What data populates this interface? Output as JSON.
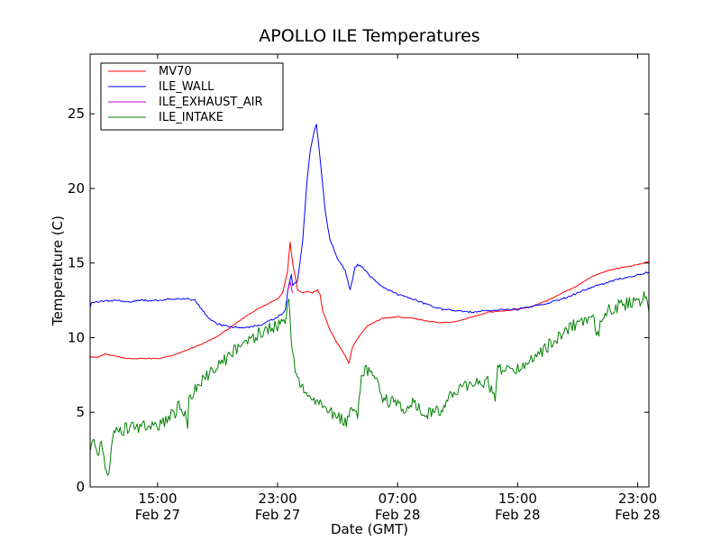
{
  "chart_data": {
    "type": "line",
    "title": "APOLLO ILE Temperatures",
    "xlabel": "Date (GMT)",
    "ylabel": "Temperature (C)",
    "xlim": [
      "2013-02-27T10:30",
      "2013-02-28T23:45"
    ],
    "ylim": [
      0,
      29
    ],
    "grid": false,
    "legend_position": "top-left",
    "x_ticks": [
      {
        "x": "2013-02-27T15:00",
        "line1": "15:00",
        "line2": "Feb 27"
      },
      {
        "x": "2013-02-27T23:00",
        "line1": "23:00",
        "line2": "Feb 27"
      },
      {
        "x": "2013-02-28T07:00",
        "line1": "07:00",
        "line2": "Feb 28"
      },
      {
        "x": "2013-02-28T15:00",
        "line1": "15:00",
        "line2": "Feb 28"
      },
      {
        "x": "2013-02-28T23:00",
        "line1": "23:00",
        "line2": "Feb 28"
      }
    ],
    "y_ticks": [
      0,
      5,
      10,
      15,
      20,
      25
    ],
    "series": [
      {
        "name": "MV70",
        "color": "#ff0000",
        "points": [
          [
            "2013-02-27T10:30",
            8.7
          ],
          [
            "2013-02-27T11:00",
            8.7
          ],
          [
            "2013-02-27T11:30",
            8.9
          ],
          [
            "2013-02-27T12:00",
            8.8
          ],
          [
            "2013-02-27T13:00",
            8.6
          ],
          [
            "2013-02-27T14:00",
            8.6
          ],
          [
            "2013-02-27T15:00",
            8.6
          ],
          [
            "2013-02-27T16:00",
            8.8
          ],
          [
            "2013-02-27T17:00",
            9.2
          ],
          [
            "2013-02-27T18:00",
            9.6
          ],
          [
            "2013-02-27T19:00",
            10.1
          ],
          [
            "2013-02-27T20:00",
            10.8
          ],
          [
            "2013-02-27T21:00",
            11.5
          ],
          [
            "2013-02-27T22:00",
            12.1
          ],
          [
            "2013-02-27T23:00",
            12.6
          ],
          [
            "2013-02-27T23:20",
            13.0
          ],
          [
            "2013-02-27T23:40",
            14.5
          ],
          [
            "2013-02-27T23:50",
            16.4
          ],
          [
            "2013-02-28T00:00",
            15.0
          ],
          [
            "2013-02-28T00:20",
            13.2
          ],
          [
            "2013-02-28T00:40",
            13.0
          ],
          [
            "2013-02-28T01:00",
            13.1
          ],
          [
            "2013-02-28T01:20",
            13.0
          ],
          [
            "2013-02-28T01:40",
            13.2
          ],
          [
            "2013-02-28T01:50",
            12.9
          ],
          [
            "2013-02-28T02:00",
            11.8
          ],
          [
            "2013-02-28T02:30",
            10.5
          ],
          [
            "2013-02-28T03:00",
            9.6
          ],
          [
            "2013-02-28T03:30",
            8.8
          ],
          [
            "2013-02-28T03:45",
            8.3
          ],
          [
            "2013-02-28T04:00",
            9.4
          ],
          [
            "2013-02-28T04:30",
            10.2
          ],
          [
            "2013-02-28T05:00",
            10.8
          ],
          [
            "2013-02-28T06:00",
            11.3
          ],
          [
            "2013-02-28T07:00",
            11.4
          ],
          [
            "2013-02-28T08:00",
            11.3
          ],
          [
            "2013-02-28T09:00",
            11.1
          ],
          [
            "2013-02-28T10:00",
            11.0
          ],
          [
            "2013-02-28T11:00",
            11.1
          ],
          [
            "2013-02-28T12:00",
            11.4
          ],
          [
            "2013-02-28T13:00",
            11.7
          ],
          [
            "2013-02-28T14:00",
            11.8
          ],
          [
            "2013-02-28T15:00",
            11.9
          ],
          [
            "2013-02-28T16:00",
            12.1
          ],
          [
            "2013-02-28T17:00",
            12.5
          ],
          [
            "2013-02-28T18:00",
            13.0
          ],
          [
            "2013-02-28T19:00",
            13.5
          ],
          [
            "2013-02-28T20:00",
            14.1
          ],
          [
            "2013-02-28T21:00",
            14.5
          ],
          [
            "2013-02-28T22:00",
            14.7
          ],
          [
            "2013-02-28T23:00",
            14.9
          ],
          [
            "2013-02-28T23:45",
            15.1
          ]
        ]
      },
      {
        "name": "ILE_WALL",
        "color": "#0000ff",
        "points": [
          [
            "2013-02-27T10:30",
            12.0
          ],
          [
            "2013-02-27T10:35",
            12.4
          ],
          [
            "2013-02-27T11:00",
            12.4
          ],
          [
            "2013-02-27T12:00",
            12.5
          ],
          [
            "2013-02-27T13:00",
            12.4
          ],
          [
            "2013-02-27T14:00",
            12.5
          ],
          [
            "2013-02-27T15:00",
            12.5
          ],
          [
            "2013-02-27T16:00",
            12.6
          ],
          [
            "2013-02-27T17:00",
            12.6
          ],
          [
            "2013-02-27T17:30",
            12.5
          ],
          [
            "2013-02-27T18:00",
            11.8
          ],
          [
            "2013-02-27T18:30",
            11.2
          ],
          [
            "2013-02-27T19:00",
            10.9
          ],
          [
            "2013-02-27T20:00",
            10.7
          ],
          [
            "2013-02-27T21:00",
            10.7
          ],
          [
            "2013-02-27T22:00",
            10.9
          ],
          [
            "2013-02-27T23:00",
            11.4
          ],
          [
            "2013-02-27T23:30",
            11.8
          ],
          [
            "2013-02-27T23:45",
            13.6
          ],
          [
            "2013-02-27T23:55",
            14.2
          ],
          [
            "2013-02-28T00:00",
            13.5
          ],
          [
            "2013-02-28T00:20",
            13.8
          ],
          [
            "2013-02-28T00:40",
            16.5
          ],
          [
            "2013-02-28T00:55",
            20.0
          ],
          [
            "2013-02-28T01:10",
            22.5
          ],
          [
            "2013-02-28T01:25",
            23.8
          ],
          [
            "2013-02-28T01:35",
            24.3
          ],
          [
            "2013-02-28T01:50",
            22.0
          ],
          [
            "2013-02-28T02:10",
            18.5
          ],
          [
            "2013-02-28T02:30",
            16.5
          ],
          [
            "2013-02-28T03:00",
            15.3
          ],
          [
            "2013-02-28T03:30",
            14.5
          ],
          [
            "2013-02-28T03:50",
            13.2
          ],
          [
            "2013-02-28T04:10",
            14.7
          ],
          [
            "2013-02-28T04:20",
            14.9
          ],
          [
            "2013-02-28T04:40",
            14.7
          ],
          [
            "2013-02-28T05:00",
            14.3
          ],
          [
            "2013-02-28T05:30",
            13.8
          ],
          [
            "2013-02-28T06:00",
            13.4
          ],
          [
            "2013-02-28T07:00",
            12.9
          ],
          [
            "2013-02-28T08:00",
            12.6
          ],
          [
            "2013-02-28T09:00",
            12.2
          ],
          [
            "2013-02-28T10:00",
            11.9
          ],
          [
            "2013-02-28T11:00",
            11.8
          ],
          [
            "2013-02-28T12:00",
            11.7
          ],
          [
            "2013-02-28T13:00",
            11.8
          ],
          [
            "2013-02-28T14:00",
            11.9
          ],
          [
            "2013-02-28T15:00",
            11.9
          ],
          [
            "2013-02-28T16:00",
            12.1
          ],
          [
            "2013-02-28T17:00",
            12.3
          ],
          [
            "2013-02-28T18:00",
            12.6
          ],
          [
            "2013-02-28T19:00",
            13.0
          ],
          [
            "2013-02-28T20:00",
            13.4
          ],
          [
            "2013-02-28T21:00",
            13.7
          ],
          [
            "2013-02-28T22:00",
            14.0
          ],
          [
            "2013-02-28T23:00",
            14.2
          ],
          [
            "2013-02-28T23:45",
            14.4
          ]
        ]
      },
      {
        "name": "ILE_EXHAUST_AIR",
        "color": "#bf00bf",
        "points": [
          [
            "2013-02-27T23:40",
            13.2
          ],
          [
            "2013-02-27T23:50",
            13.8
          ],
          [
            "2013-02-28T00:00",
            13.0
          ]
        ]
      },
      {
        "name": "ILE_INTAKE",
        "color": "#008000",
        "points": [
          [
            "2013-02-27T10:30",
            2.0
          ],
          [
            "2013-02-27T10:40",
            3.0
          ],
          [
            "2013-02-27T11:00",
            2.4
          ],
          [
            "2013-02-27T11:20",
            2.8
          ],
          [
            "2013-02-27T11:30",
            1.0
          ],
          [
            "2013-02-27T11:45",
            1.0
          ],
          [
            "2013-02-27T12:00",
            3.6
          ],
          [
            "2013-02-27T12:30",
            3.9
          ],
          [
            "2013-02-27T13:00",
            3.9
          ],
          [
            "2013-02-27T14:00",
            4.0
          ],
          [
            "2013-02-27T15:00",
            4.2
          ],
          [
            "2013-02-27T16:00",
            4.8
          ],
          [
            "2013-02-27T16:30",
            5.5
          ],
          [
            "2013-02-27T17:00",
            4.2
          ],
          [
            "2013-02-27T17:05",
            5.8
          ],
          [
            "2013-02-27T17:30",
            6.5
          ],
          [
            "2013-02-27T18:00",
            7.3
          ],
          [
            "2013-02-27T19:00",
            8.0
          ],
          [
            "2013-02-27T20:00",
            9.0
          ],
          [
            "2013-02-27T21:00",
            9.8
          ],
          [
            "2013-02-27T22:00",
            10.4
          ],
          [
            "2013-02-27T23:00",
            10.8
          ],
          [
            "2013-02-27T23:30",
            11.0
          ],
          [
            "2013-02-27T23:45",
            12.9
          ],
          [
            "2013-02-27T23:55",
            10.0
          ],
          [
            "2013-02-28T00:10",
            8.0
          ],
          [
            "2013-02-28T00:30",
            6.8
          ],
          [
            "2013-02-28T01:00",
            6.2
          ],
          [
            "2013-02-28T01:30",
            5.8
          ],
          [
            "2013-02-28T02:00",
            5.5
          ],
          [
            "2013-02-28T02:30",
            5.0
          ],
          [
            "2013-02-28T03:00",
            4.6
          ],
          [
            "2013-02-28T03:30",
            4.3
          ],
          [
            "2013-02-28T04:00",
            5.3
          ],
          [
            "2013-02-28T04:20",
            5.0
          ],
          [
            "2013-02-28T04:40",
            7.8
          ],
          [
            "2013-02-28T05:00",
            7.9
          ],
          [
            "2013-02-28T05:30",
            7.2
          ],
          [
            "2013-02-28T06:00",
            6.0
          ],
          [
            "2013-02-28T06:30",
            5.7
          ],
          [
            "2013-02-28T07:00",
            5.5
          ],
          [
            "2013-02-28T07:30",
            5.3
          ],
          [
            "2013-02-28T08:00",
            5.6
          ],
          [
            "2013-02-28T08:30",
            5.1
          ],
          [
            "2013-02-28T09:00",
            4.9
          ],
          [
            "2013-02-28T09:30",
            5.0
          ],
          [
            "2013-02-28T10:00",
            4.9
          ],
          [
            "2013-02-28T10:30",
            6.2
          ],
          [
            "2013-02-28T11:00",
            6.4
          ],
          [
            "2013-02-28T12:00",
            6.9
          ],
          [
            "2013-02-28T13:00",
            7.1
          ],
          [
            "2013-02-28T13:30",
            5.8
          ],
          [
            "2013-02-28T13:40",
            8.0
          ],
          [
            "2013-02-28T14:00",
            7.8
          ],
          [
            "2013-02-28T15:00",
            8.0
          ],
          [
            "2013-02-28T16:00",
            8.5
          ],
          [
            "2013-02-28T17:00",
            9.4
          ],
          [
            "2013-02-28T18:00",
            10.2
          ],
          [
            "2013-02-28T19:00",
            11.0
          ],
          [
            "2013-02-28T20:00",
            11.4
          ],
          [
            "2013-02-28T20:20",
            10.2
          ],
          [
            "2013-02-28T20:40",
            11.5
          ],
          [
            "2013-02-28T21:00",
            11.8
          ],
          [
            "2013-02-28T22:00",
            12.2
          ],
          [
            "2013-02-28T23:00",
            12.5
          ],
          [
            "2013-02-28T23:30",
            12.7
          ],
          [
            "2013-02-28T23:45",
            11.7
          ]
        ]
      }
    ]
  }
}
